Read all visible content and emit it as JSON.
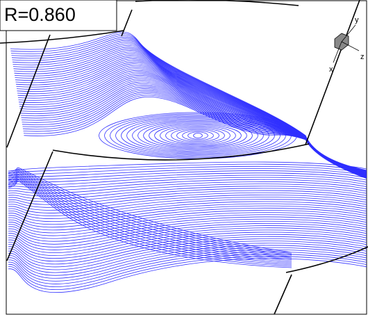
{
  "label": "R=0.860",
  "axes": {
    "x": "x",
    "y": "y",
    "z": "z"
  }
}
